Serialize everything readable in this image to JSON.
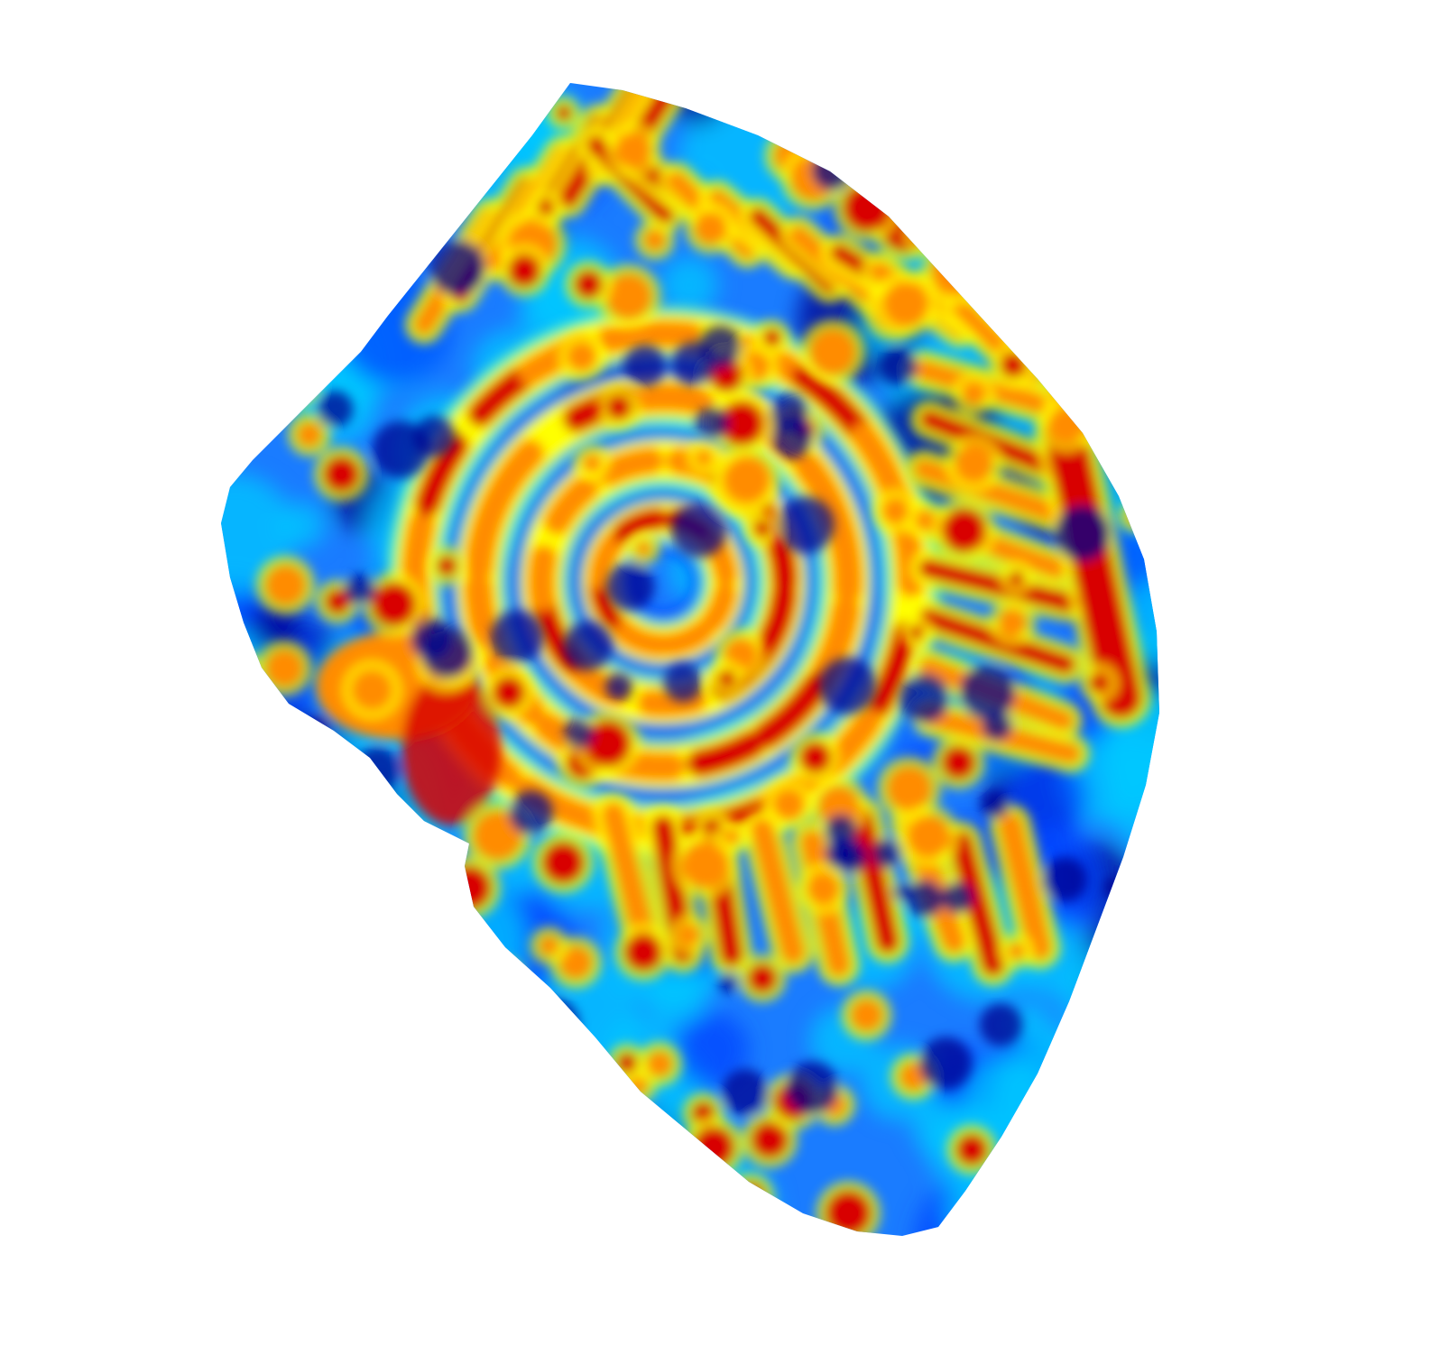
{
  "figure": {
    "type": "surface-heatmap",
    "colormap": "jet",
    "colormap_stops": [
      "#00008f",
      "#0044ff",
      "#00c8ff",
      "#7dffaa",
      "#ffff00",
      "#ff8c00",
      "#d80000"
    ],
    "background": "#ffffff",
    "surface_base_color": "#1a7cff",
    "pattern_description_present": false
  }
}
